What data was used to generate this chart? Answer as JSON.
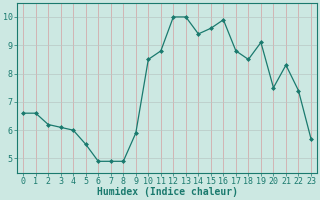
{
  "x": [
    0,
    1,
    2,
    3,
    4,
    5,
    6,
    7,
    8,
    9,
    10,
    11,
    12,
    13,
    14,
    15,
    16,
    17,
    18,
    19,
    20,
    21,
    22,
    23
  ],
  "y": [
    6.6,
    6.6,
    6.2,
    6.1,
    6.0,
    5.5,
    4.9,
    4.9,
    4.9,
    5.9,
    8.5,
    8.8,
    10.0,
    10.0,
    9.4,
    9.6,
    9.9,
    8.8,
    8.5,
    9.1,
    7.5,
    8.3,
    7.4,
    5.7
  ],
  "line_color": "#1a7a6e",
  "marker_color": "#1a7a6e",
  "bg_color": "#cce8e2",
  "grid_color": "#b0c8c4",
  "xlabel": "Humidex (Indice chaleur)",
  "xlabel_fontsize": 7,
  "tick_fontsize": 6,
  "ylim": [
    4.5,
    10.5
  ],
  "xlim": [
    -0.5,
    23.5
  ],
  "yticks": [
    5,
    6,
    7,
    8,
    9,
    10
  ],
  "xticks": [
    0,
    1,
    2,
    3,
    4,
    5,
    6,
    7,
    8,
    9,
    10,
    11,
    12,
    13,
    14,
    15,
    16,
    17,
    18,
    19,
    20,
    21,
    22,
    23
  ]
}
